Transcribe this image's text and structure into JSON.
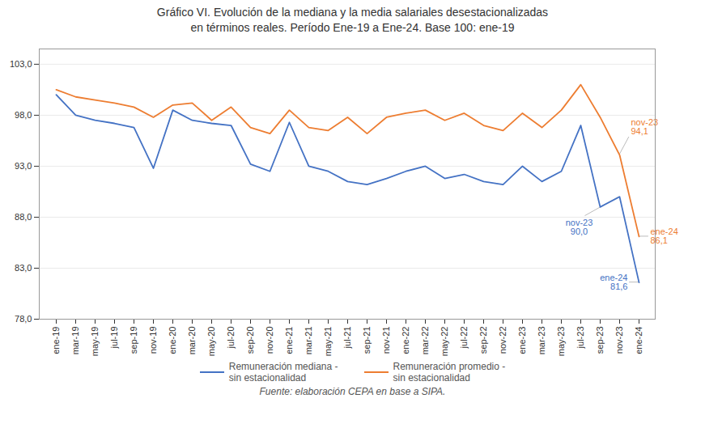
{
  "chart_data": {
    "type": "line",
    "title": "Gráfico VI. Evolución de la mediana y la media salariales desestacionalizadas\nen términos reales. Período Ene-19 a Ene-24. Base 100: ene-19",
    "caption": "Fuente: elaboración CEPA en base a SIPA.",
    "categories": [
      "ene-19",
      "mar-19",
      "may-19",
      "jul-19",
      "sep-19",
      "nov-19",
      "ene-20",
      "mar-20",
      "may-20",
      "jul-20",
      "sep-20",
      "nov-20",
      "ene-21",
      "mar-21",
      "may-21",
      "jul-21",
      "sep-21",
      "nov-21",
      "ene-22",
      "mar-22",
      "may-22",
      "jul-22",
      "sep-22",
      "nov-22",
      "ene-23",
      "mar-23",
      "may-23",
      "jul-23",
      "sep-23",
      "nov-23",
      "ene-24"
    ],
    "series": [
      {
        "name": "Remuneración mediana -\nsin estacionalidad",
        "color": "#4472c4",
        "values": [
          100.0,
          98.0,
          97.5,
          97.2,
          96.8,
          92.8,
          98.5,
          97.5,
          97.2,
          97.0,
          93.2,
          92.5,
          97.3,
          93.0,
          92.5,
          91.5,
          91.2,
          91.8,
          92.5,
          93.0,
          91.8,
          92.2,
          91.5,
          91.2,
          93.0,
          91.5,
          92.5,
          97.0,
          89.0,
          90.0,
          81.6
        ]
      },
      {
        "name": "Remuneración promedio -\nsin estacionalidad",
        "color": "#ed7d31",
        "values": [
          100.5,
          99.8,
          99.5,
          99.2,
          98.8,
          97.8,
          99.0,
          99.2,
          97.5,
          98.8,
          96.8,
          96.2,
          98.5,
          96.8,
          96.5,
          97.8,
          96.2,
          97.8,
          98.2,
          98.5,
          97.5,
          98.2,
          97.0,
          96.5,
          98.2,
          96.8,
          98.5,
          101.0,
          97.8,
          94.1,
          86.1
        ]
      }
    ],
    "ylim": [
      78.0,
      104.5
    ],
    "yticks": [
      {
        "value": 78.0,
        "label": "78,0"
      },
      {
        "value": 83.0,
        "label": "83,0"
      },
      {
        "value": 88.0,
        "label": "88,0"
      },
      {
        "value": 93.0,
        "label": "93,0"
      },
      {
        "value": 98.0,
        "label": "98,0"
      },
      {
        "value": 103.0,
        "label": "103,0"
      }
    ],
    "grid": true,
    "legend": "bottom",
    "annotations": [
      {
        "text": "nov-23\n90,0",
        "x": "nov-23",
        "y": 90.0,
        "color": "#4472c4"
      },
      {
        "text": "ene-24\n81,6",
        "x": "ene-24",
        "y": 81.6,
        "color": "#4472c4"
      },
      {
        "text": "nov-23\n94,1",
        "x": "nov-23",
        "y": 94.1,
        "color": "#ed7d31"
      },
      {
        "text": "ene-24\n86,1",
        "x": "ene-24",
        "y": 86.1,
        "color": "#ed7d31"
      }
    ]
  }
}
